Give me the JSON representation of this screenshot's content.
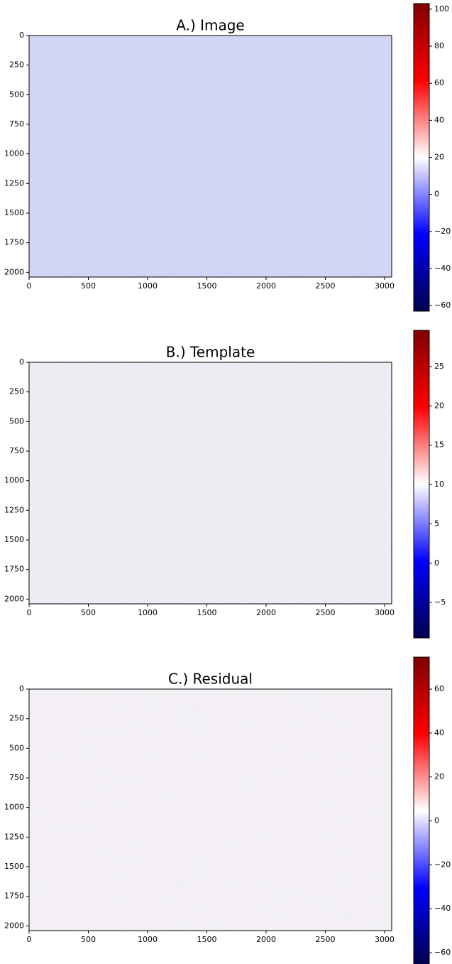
{
  "chart_data": [
    {
      "type": "image",
      "title": "A.) Image",
      "color": "#d4d7f4",
      "xlim": [
        0,
        3060
      ],
      "ylim": [
        2040,
        0
      ],
      "xticks": [
        0,
        500,
        1000,
        1500,
        2000,
        2500,
        3000
      ],
      "yticks": [
        0,
        250,
        500,
        750,
        1000,
        1250,
        1500,
        1750,
        2000
      ],
      "clim": [
        -63,
        103
      ],
      "cticks": [
        {
          "value": -60,
          "label": "−60"
        },
        {
          "value": -40,
          "label": "−40"
        },
        {
          "value": -20,
          "label": "−20"
        },
        0,
        20,
        40,
        60,
        80,
        100
      ],
      "colormap": [
        "#00004c",
        "#0000ff",
        "#ffffff",
        "#ff0000",
        "#800000"
      ]
    },
    {
      "type": "image",
      "title": "B.) Template",
      "color": "#f2eef4",
      "xlim": [
        0,
        3060
      ],
      "ylim": [
        2040,
        0
      ],
      "xticks": [
        0,
        500,
        1000,
        1500,
        2000,
        2500,
        3000
      ],
      "yticks": [
        0,
        250,
        500,
        750,
        1000,
        1250,
        1500,
        1750,
        2000
      ],
      "clim": [
        -9.5,
        29.6
      ],
      "cticks": [
        {
          "value": -5,
          "label": "−5"
        },
        0,
        5,
        10,
        15,
        20,
        25
      ],
      "colormap": [
        "#00004c",
        "#0000ff",
        "#ffffff",
        "#ff0000",
        "#800000"
      ]
    },
    {
      "type": "image",
      "title": "C.) Residual",
      "color": "#f6f2f4",
      "xlim": [
        0,
        3060
      ],
      "ylim": [
        2040,
        0
      ],
      "xticks": [
        0,
        500,
        1000,
        1500,
        2000,
        2500,
        3000
      ],
      "yticks": [
        0,
        250,
        500,
        750,
        1000,
        1250,
        1500,
        1750,
        2000
      ],
      "clim": [
        -65.5,
        74.6
      ],
      "cticks": [
        {
          "value": -60,
          "label": "−60"
        },
        {
          "value": -40,
          "label": "−40"
        },
        {
          "value": -20,
          "label": "−20"
        },
        0,
        20,
        40,
        60
      ],
      "colormap": [
        "#00004c",
        "#0000ff",
        "#ffffff",
        "#ff0000",
        "#800000"
      ]
    }
  ]
}
